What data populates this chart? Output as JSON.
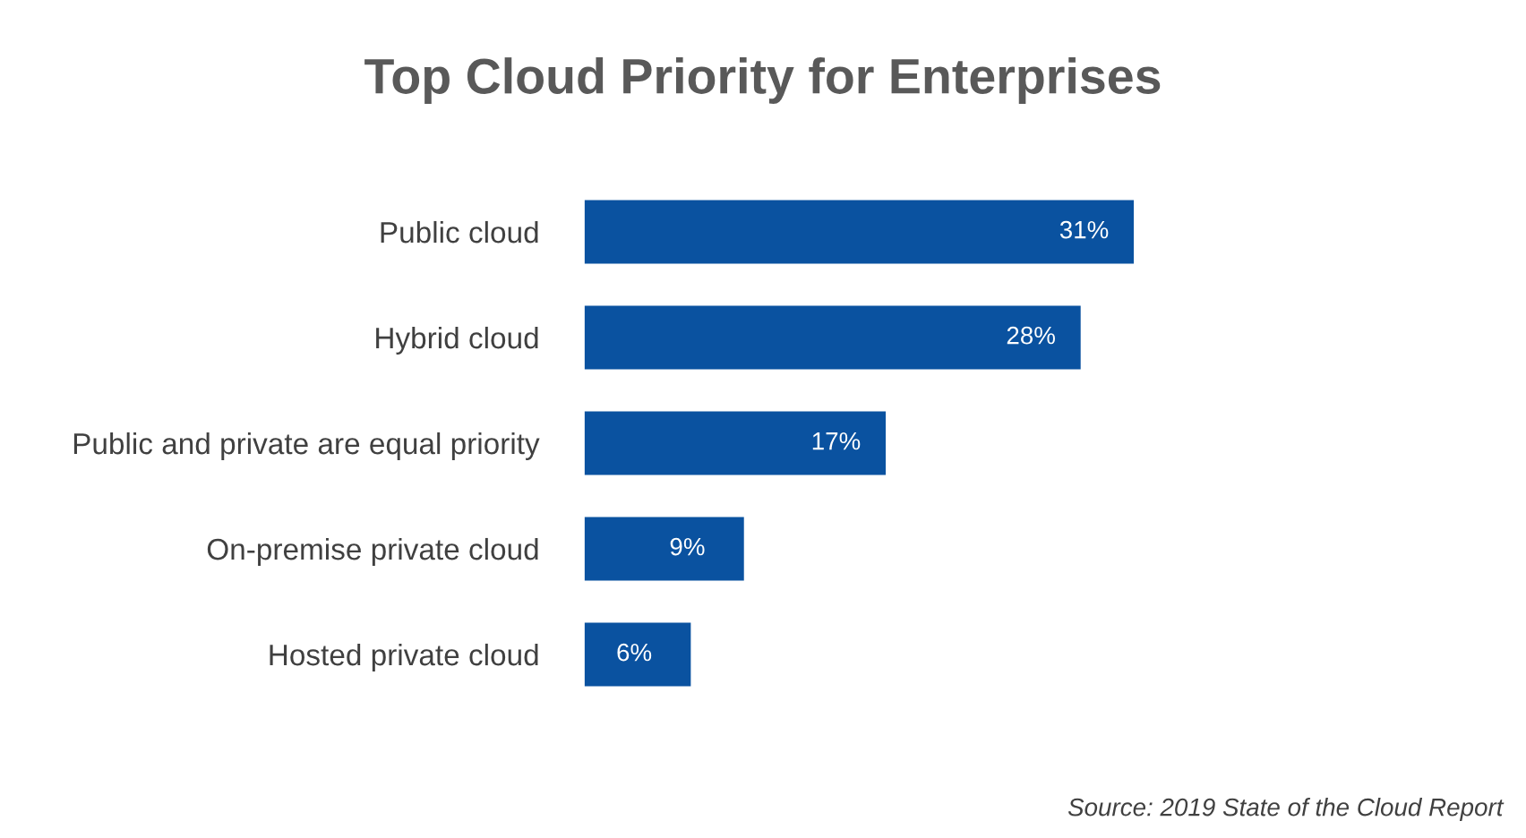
{
  "chart_data": {
    "type": "bar",
    "orientation": "horizontal",
    "title": "Top Cloud Priority for Enterprises",
    "categories": [
      "Public cloud",
      "Hybrid cloud",
      "Public and private are equal priority",
      "On-premise private cloud",
      "Hosted private cloud"
    ],
    "values": [
      31,
      28,
      17,
      9,
      6
    ],
    "value_labels": [
      "31%",
      "28%",
      "17%",
      "9%",
      "6%"
    ],
    "color": "#0a52a0",
    "grid": false,
    "legend": false,
    "annotations": [
      "Source: 2019 State of the Cloud Report"
    ]
  }
}
